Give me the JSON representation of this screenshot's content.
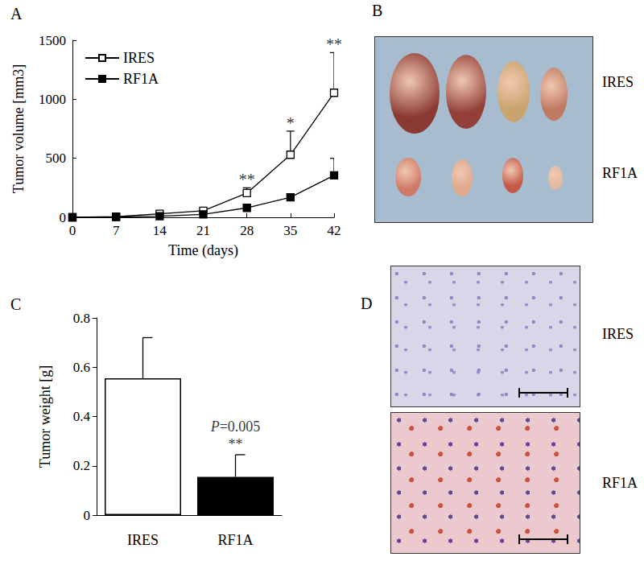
{
  "chart_data": [
    {
      "type": "line",
      "title": "A",
      "x_label": "Time (days)",
      "y_label": "Tumor volume [mm3]",
      "x": [
        0,
        7,
        14,
        21,
        28,
        35,
        42
      ],
      "series": [
        {
          "name": "IRES",
          "color": "#000000",
          "marker": "square-open",
          "values": [
            0,
            5,
            30,
            55,
            205,
            530,
            1055
          ],
          "errors": [
            0,
            3,
            10,
            15,
            45,
            200,
            340
          ]
        },
        {
          "name": "RF1A",
          "color": "#000000",
          "marker": "square",
          "values": [
            0,
            3,
            10,
            25,
            80,
            170,
            355
          ],
          "errors": [
            0,
            2,
            5,
            8,
            15,
            30,
            145
          ]
        }
      ],
      "xlim": [
        0,
        42
      ],
      "xticks": [
        0,
        7,
        14,
        21,
        28,
        35,
        42
      ],
      "ylim": [
        0,
        1500
      ],
      "yticks": [
        0,
        500,
        1000,
        1500
      ],
      "grid": false,
      "legend": "upper left",
      "annotations": [
        {
          "x": 28,
          "text": "**"
        },
        {
          "x": 35,
          "text": "*"
        },
        {
          "x": 42,
          "text": "**"
        }
      ]
    },
    {
      "type": "bar",
      "title": "C",
      "y_label": "Tumor weight [g]",
      "categories": [
        "IRES",
        "RF1A"
      ],
      "values": [
        0.555,
        0.155
      ],
      "errors": [
        0.165,
        0.09
      ],
      "colors": [
        "#ffffff",
        "#000000"
      ],
      "ylim": [
        0,
        0.8
      ],
      "yticks": [
        0,
        0.2,
        0.4,
        0.6,
        0.8
      ],
      "grid": false,
      "annotations": [
        {
          "category": "RF1A",
          "text": "P=0.005"
        },
        {
          "category": "RF1A",
          "text": "**"
        }
      ]
    }
  ],
  "images": [
    {
      "title": "B",
      "labels": [
        "IRES",
        "RF1A"
      ]
    },
    {
      "title": "D",
      "labels": [
        "IRES",
        "RF1A"
      ]
    }
  ]
}
